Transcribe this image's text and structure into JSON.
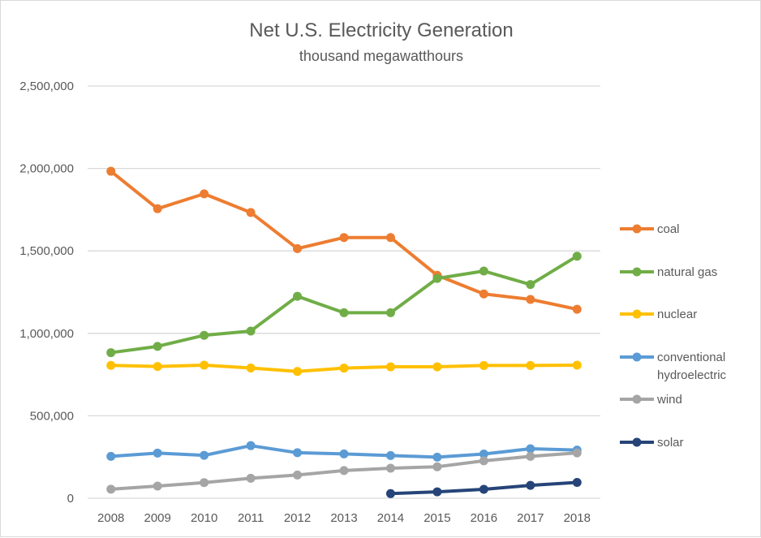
{
  "chart_data": {
    "type": "line",
    "title": "Net U.S. Electricity Generation",
    "subtitle": "thousand megawatthours",
    "xlabel": "",
    "ylabel": "",
    "ylim": [
      0,
      2500000
    ],
    "yticks": [
      0,
      500000,
      1000000,
      1500000,
      2000000,
      2500000
    ],
    "ytick_labels": [
      "0",
      "500,000",
      "1,000,000",
      "1,500,000",
      "2,000,000",
      "2,500,000"
    ],
    "grid": true,
    "legend_position": "right",
    "categories": [
      "2008",
      "2009",
      "2010",
      "2011",
      "2012",
      "2013",
      "2014",
      "2015",
      "2016",
      "2017",
      "2018"
    ],
    "series": [
      {
        "name": "coal",
        "color": "#ed7d31",
        "values": [
          1983000,
          1756000,
          1846000,
          1733000,
          1514000,
          1581000,
          1581000,
          1352000,
          1239000,
          1206000,
          1146000
        ]
      },
      {
        "name": "natural gas",
        "color": "#70ad47",
        "values": [
          883000,
          921000,
          988000,
          1014000,
          1225000,
          1125000,
          1125000,
          1333000,
          1378000,
          1296000,
          1468000
        ]
      },
      {
        "name": "nuclear",
        "color": "#ffc000",
        "values": [
          806000,
          799000,
          807000,
          790000,
          769000,
          789000,
          797000,
          797000,
          805000,
          805000,
          807000
        ]
      },
      {
        "name": "conventional hydroelectric",
        "legend_lines": [
          "conventional",
          "hydroelectric"
        ],
        "color": "#5b9bd5",
        "values": [
          254000,
          274000,
          260000,
          319000,
          276000,
          269000,
          259000,
          249000,
          268000,
          300000,
          292000
        ]
      },
      {
        "name": "wind",
        "color": "#a5a5a5",
        "values": [
          55000,
          74000,
          95000,
          121000,
          141000,
          168000,
          182000,
          191000,
          227000,
          254000,
          275000
        ]
      },
      {
        "name": "solar",
        "color": "#264478",
        "values": [
          null,
          null,
          null,
          null,
          null,
          null,
          28000,
          39000,
          54000,
          78000,
          96000
        ]
      }
    ]
  }
}
